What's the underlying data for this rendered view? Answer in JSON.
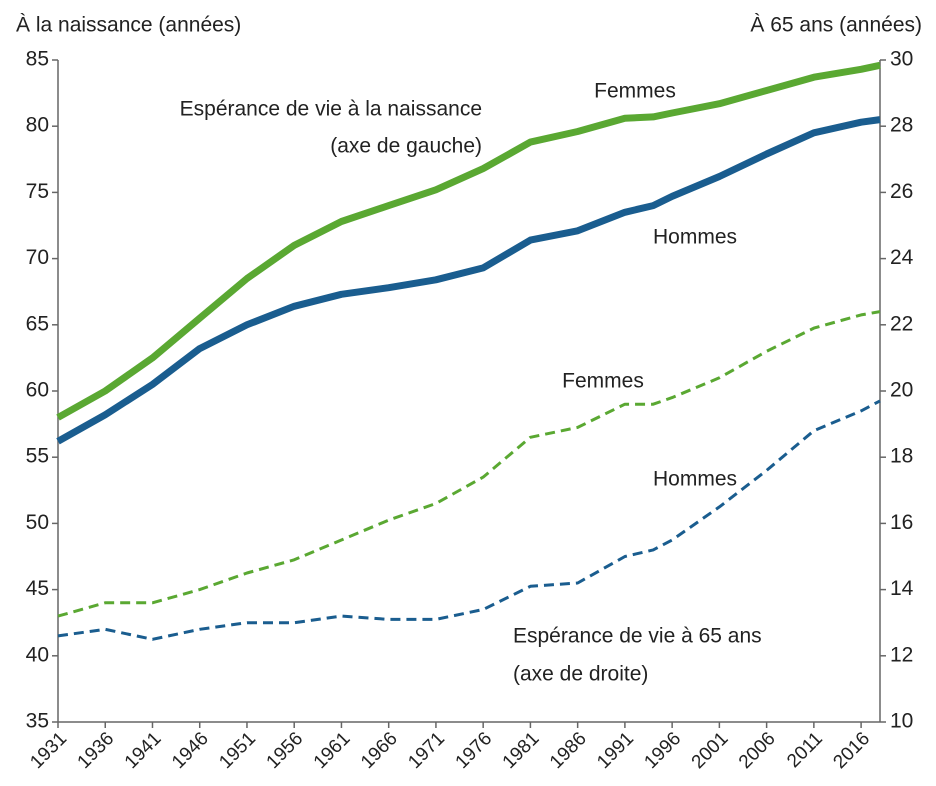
{
  "chart_data": {
    "type": "line",
    "y_label": "À la naissance (années)",
    "y2_label": "À 65 ans (années)",
    "annotations": [
      {
        "lines": [
          "Espérance de vie à la naissance",
          "(axe de gauche)"
        ]
      },
      {
        "lines": [
          "Espérance de vie à 65 ans",
          "(axe de droite)"
        ]
      }
    ],
    "x": [
      1931,
      1936,
      1941,
      1946,
      1951,
      1956,
      1961,
      1966,
      1971,
      1976,
      1981,
      1986,
      1991,
      1994,
      1996,
      2001,
      2006,
      2011,
      2016,
      2018
    ],
    "series": [
      {
        "name": "Femmes",
        "color": "#5aa832",
        "line_style": "solid",
        "axis": "y",
        "values": [
          58.0,
          60.0,
          62.5,
          65.5,
          68.5,
          71.0,
          72.8,
          74.0,
          75.2,
          76.8,
          78.8,
          79.6,
          80.6,
          80.7,
          81.0,
          81.7,
          82.7,
          83.7,
          84.3,
          84.6
        ]
      },
      {
        "name": "Hommes",
        "color": "#1a5d8f",
        "line_style": "solid",
        "axis": "y",
        "values": [
          56.2,
          58.2,
          60.5,
          63.2,
          65.0,
          66.4,
          67.3,
          67.8,
          68.4,
          69.3,
          71.4,
          72.1,
          73.5,
          74.0,
          74.7,
          76.2,
          77.9,
          79.5,
          80.3,
          80.5
        ]
      },
      {
        "name": "Femmes",
        "color": "#5aa832",
        "line_style": "dashed",
        "axis": "y2",
        "values": [
          13.2,
          13.6,
          13.6,
          14.0,
          14.5,
          14.9,
          15.5,
          16.1,
          16.6,
          17.4,
          18.6,
          18.9,
          19.6,
          19.6,
          19.8,
          20.4,
          21.2,
          21.9,
          22.3,
          22.4
        ]
      },
      {
        "name": "Hommes",
        "color": "#1a5d8f",
        "line_style": "dashed",
        "axis": "y2",
        "values": [
          12.6,
          12.8,
          12.5,
          12.8,
          13.0,
          13.0,
          13.2,
          13.1,
          13.1,
          13.4,
          14.1,
          14.2,
          15.0,
          15.2,
          15.5,
          16.5,
          17.6,
          18.8,
          19.4,
          19.7
        ]
      }
    ],
    "xlim": [
      1931,
      2018
    ],
    "xticks": [
      1931,
      1936,
      1941,
      1946,
      1951,
      1956,
      1961,
      1966,
      1971,
      1976,
      1981,
      1986,
      1991,
      1996,
      2001,
      2006,
      2011,
      2016
    ],
    "ylim": [
      35,
      85
    ],
    "yticks": [
      35,
      40,
      45,
      50,
      55,
      60,
      65,
      70,
      75,
      80,
      85
    ],
    "y2lim": [
      10,
      30
    ],
    "y2ticks": [
      10,
      12,
      14,
      16,
      18,
      20,
      22,
      24,
      26,
      28,
      30
    ],
    "grid": false
  }
}
